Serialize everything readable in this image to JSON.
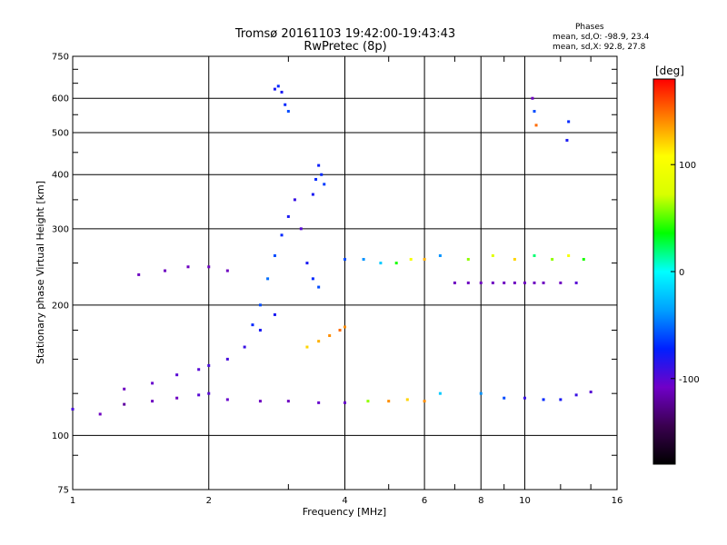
{
  "header": {
    "title_line1": "Tromsø 20161103 19:42:00-19:43:43",
    "title_line2": "RwPretec (8p)",
    "stats_title": "Phases",
    "stats_line1": "mean, sd,O:  -98.9, 23.4",
    "stats_line2": "mean, sd,X:  92.8, 27.8"
  },
  "chart_data": {
    "type": "scatter",
    "title": "Tromsø 20161103 19:42:00-19:43:43",
    "subtitle": "RwPretec (8p)",
    "xlabel": "Frequency [MHz]",
    "ylabel": "Stationary phase Virtual Height [km]",
    "xscale": "log",
    "yscale": "log",
    "xlim": [
      1,
      16
    ],
    "ylim": [
      75,
      750
    ],
    "xticks": [
      1,
      2,
      4,
      6,
      8,
      10,
      16
    ],
    "yticks": [
      75,
      100,
      200,
      300,
      400,
      500,
      600,
      750
    ],
    "minor_xticks": [
      3,
      5,
      7,
      9,
      12,
      14
    ],
    "minor_yticks": [
      90,
      125,
      150,
      175,
      250,
      350,
      450,
      550,
      650,
      700
    ],
    "grid": true,
    "colorbar": {
      "label": "[deg]",
      "range": [
        -180,
        180
      ],
      "ticks": [
        100,
        0,
        -100
      ],
      "colors": [
        "#000000",
        "#3a0050",
        "#7000c8",
        "#0020ff",
        "#00a0ff",
        "#00ffff",
        "#00ff00",
        "#d8ff00",
        "#ffff00",
        "#ff8000",
        "#ff0000"
      ]
    },
    "series": [
      {
        "x": [
          1.0,
          1.15,
          1.3,
          1.5,
          1.7,
          1.9,
          2.0,
          2.2,
          2.6,
          3.0,
          3.5,
          4.0,
          4.5,
          5.0,
          5.5,
          6.0
        ],
        "y": [
          115,
          112,
          118,
          120,
          122,
          124,
          125,
          121,
          120,
          120,
          119,
          119,
          120,
          120,
          121,
          120
        ],
        "phase": [
          -95,
          -110,
          -120,
          -110,
          -110,
          -100,
          -100,
          -105,
          -110,
          -110,
          -105,
          -105,
          60,
          140,
          120,
          140
        ]
      },
      {
        "x": [
          1.3,
          1.5,
          1.7,
          1.9,
          2.0,
          2.2,
          2.4,
          2.6,
          2.8
        ],
        "y": [
          128,
          132,
          138,
          142,
          145,
          150,
          160,
          175,
          190
        ],
        "phase": [
          -110,
          -105,
          -100,
          -100,
          -95,
          -95,
          -90,
          -80,
          -80
        ]
      },
      {
        "x": [
          2.5,
          2.6,
          2.7,
          2.8,
          2.9,
          3.0,
          3.1,
          3.2,
          3.3,
          3.4,
          3.5
        ],
        "y": [
          180,
          200,
          230,
          260,
          290,
          320,
          350,
          300,
          250,
          230,
          220
        ],
        "phase": [
          -70,
          -60,
          -50,
          -60,
          -70,
          -80,
          -90,
          -100,
          -80,
          -70,
          -60
        ]
      },
      {
        "x": [
          3.3,
          3.5,
          3.7,
          3.9,
          4.0
        ],
        "y": [
          160,
          165,
          170,
          175,
          178
        ],
        "phase": [
          120,
          130,
          140,
          150,
          140
        ]
      },
      {
        "x": [
          1.4,
          1.6,
          1.8,
          2.0,
          2.2
        ],
        "y": [
          235,
          240,
          245,
          245,
          240
        ],
        "phase": [
          -110,
          -110,
          -110,
          -110,
          -110
        ]
      },
      {
        "x": [
          2.8,
          2.85,
          2.9,
          2.95,
          3.0
        ],
        "y": [
          630,
          640,
          620,
          580,
          560
        ],
        "phase": [
          -80,
          -70,
          -80,
          -70,
          -60
        ]
      },
      {
        "x": [
          3.4,
          3.45,
          3.5,
          3.55,
          3.6
        ],
        "y": [
          360,
          390,
          420,
          400,
          380
        ],
        "phase": [
          -80,
          -70,
          -75,
          -70,
          -65
        ]
      },
      {
        "x": [
          4.0,
          4.4,
          4.8,
          5.2,
          5.6,
          6.0
        ],
        "y": [
          255,
          255,
          250,
          250,
          255,
          255
        ],
        "phase": [
          -60,
          -40,
          -20,
          40,
          100,
          130
        ]
      },
      {
        "x": [
          7.0,
          7.5,
          8.0,
          8.5,
          9.0,
          9.5,
          10.0,
          10.5,
          11.0,
          12.0,
          13.0
        ],
        "y": [
          225,
          225,
          225,
          225,
          225,
          225,
          225,
          225,
          225,
          225,
          225
        ],
        "phase": [
          -110,
          -110,
          -110,
          -110,
          -110,
          -110,
          -110,
          -110,
          -110,
          -110,
          -100
        ]
      },
      {
        "x": [
          6.5,
          7.5,
          8.5,
          9.5,
          10.5,
          11.5,
          12.5,
          13.5
        ],
        "y": [
          260,
          255,
          260,
          255,
          260,
          255,
          260,
          255
        ],
        "phase": [
          -40,
          60,
          80,
          120,
          20,
          60,
          100,
          40
        ]
      },
      {
        "x": [
          6.5,
          8.0,
          9.0,
          10.0,
          11.0,
          12.0,
          13.0,
          14.0
        ],
        "y": [
          125,
          125,
          122,
          122,
          121,
          121,
          124,
          126
        ],
        "phase": [
          -20,
          -40,
          -60,
          -90,
          -70,
          -80,
          -90,
          -100
        ]
      },
      {
        "x": [
          10.4,
          10.5,
          10.6,
          12.4,
          12.5
        ],
        "y": [
          600,
          560,
          520,
          480,
          530
        ],
        "phase": [
          -110,
          -60,
          150,
          -80,
          -70
        ]
      }
    ]
  }
}
